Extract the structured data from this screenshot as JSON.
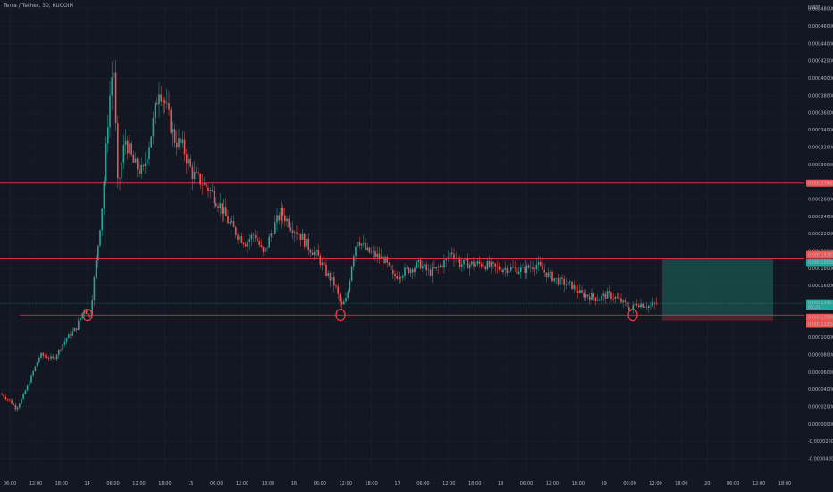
{
  "header": {
    "symbol_title": "Terra / Tether, 30, KUCOIN"
  },
  "colors": {
    "background": "#131722",
    "grid": "#1c2030",
    "up": "#26a69a",
    "down": "#ef5350",
    "level_line": "#f23645",
    "target_zone": "#1a4d4a",
    "stop_zone": "#5c2330",
    "current_price": "#26a69a",
    "marker": "#f23645"
  },
  "chart_data": {
    "type": "candlestick",
    "ylabel": "USDT",
    "ylim": [
      -6e-05,
      0.000482
    ],
    "y_tick_labels": [
      "0.00048000",
      "0.00046000",
      "0.00044000",
      "0.00042000",
      "0.00040000",
      "0.00038000",
      "0.00036000",
      "0.00034000",
      "0.00032000",
      "0.00030000",
      "0.00028000",
      "0.00026000",
      "0.00024000",
      "0.00022000",
      "0.00020000",
      "0.00018000",
      "0.00016000",
      "0.00014000",
      "0.00012000",
      "0.00010000",
      "0.00008000",
      "0.00006000",
      "0.00004000",
      "0.00002000",
      "0.00000000",
      "-0.00002000",
      "-0.00004000"
    ],
    "x_tick_labels": [
      "06:00",
      "12:00",
      "18:00",
      "14",
      "06:00",
      "12:00",
      "18:00",
      "15",
      "06:00",
      "12:00",
      "18:00",
      "16",
      "06:00",
      "12:00",
      "18:00",
      "17",
      "06:00",
      "12:00",
      "18:00",
      "18",
      "06:00",
      "12:00",
      "18:00",
      "19",
      "06:00",
      "12:00",
      "18:00",
      "20",
      "06:00",
      "12:00",
      "18:00"
    ],
    "price_levels": [
      {
        "label": "0.00027843",
        "value": 0.00027843,
        "role": "resistance"
      },
      {
        "label": "0.00019181",
        "value": 0.00019181,
        "role": "resistance"
      },
      {
        "label": "0.00012589",
        "value": 0.00012589,
        "role": "support"
      }
    ],
    "position_labels": {
      "target": "0.00019056",
      "current": "0.00013907",
      "current_sub": "05:29",
      "entry": "0.00012589",
      "stop": "0.00011934"
    },
    "annotations": [
      "support touch 1",
      "support touch 2",
      "support touch 3"
    ],
    "grid": true
  }
}
